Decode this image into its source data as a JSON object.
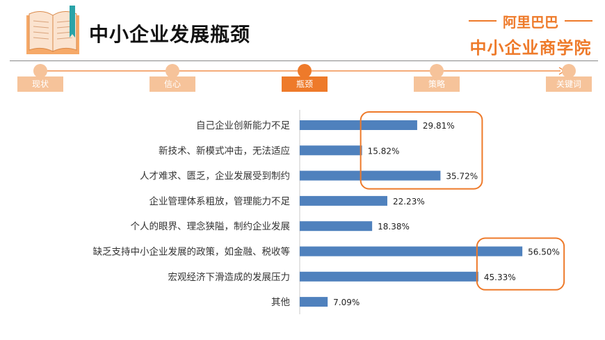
{
  "header": {
    "title": "中小企业发展瓶颈"
  },
  "logo": {
    "top": "阿里巴巴",
    "bottom": "中小企业商学院",
    "color": "#ee7a2a"
  },
  "steps": [
    {
      "label": "现状",
      "active": false
    },
    {
      "label": "信心",
      "active": false
    },
    {
      "label": "瓶颈",
      "active": true
    },
    {
      "label": "策略",
      "active": false
    },
    {
      "label": "关键词",
      "active": false
    }
  ],
  "colors": {
    "accent": "#ee7a2a",
    "accent_light": "#f6c39a",
    "bar": "#4f81bd"
  },
  "chart_data": {
    "type": "bar",
    "orientation": "horizontal",
    "categories": [
      "自己企业创新能力不足",
      "新技术、新模式冲击，无法适应",
      "人才难求、匮乏，企业发展受到制约",
      "企业管理体系粗放，管理能力不足",
      "个人的眼界、理念狭隘，制约企业发展",
      "缺乏支持中小企业发展的政策，如金融、税收等",
      "宏观经济下滑造成的发展压力",
      "其他"
    ],
    "values": [
      29.81,
      15.82,
      35.72,
      22.23,
      18.38,
      56.5,
      45.33,
      7.09
    ],
    "value_labels": [
      "29.81%",
      "15.82%",
      "35.72%",
      "22.23%",
      "18.38%",
      "56.50%",
      "45.33%",
      "7.09%"
    ],
    "xlim": [
      0,
      60
    ],
    "grid": false,
    "highlight_groups": [
      [
        0,
        2
      ],
      [
        5,
        6
      ]
    ]
  }
}
